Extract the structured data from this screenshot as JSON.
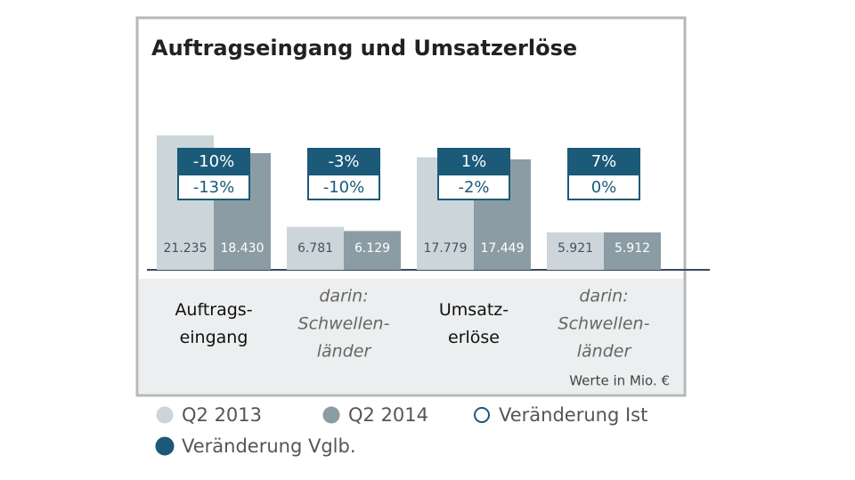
{
  "chart_data": {
    "type": "bar",
    "title": "Auftragseingang und Umsatzerlöse",
    "categories": [
      [
        "Auftrags-",
        "eingang"
      ],
      [
        "darin:",
        "Schwellen-",
        "länder"
      ],
      [
        "Umsatz-",
        "erlöse"
      ],
      [
        "darin:",
        "Schwellen-",
        "länder"
      ]
    ],
    "category_italic": [
      false,
      true,
      false,
      true
    ],
    "series": [
      {
        "name": "Q2 2013",
        "style": "bar",
        "color": "#cbd5da",
        "label_color": "#44525c",
        "values": [
          21235,
          6781,
          17779,
          5921
        ],
        "value_labels": [
          "21.235",
          "6.781",
          "17.779",
          "5.921"
        ]
      },
      {
        "name": "Q2 2014",
        "style": "bar",
        "color": "#8c9ca5",
        "label_color": "#ffffff",
        "values": [
          18430,
          6129,
          17449,
          5912
        ],
        "value_labels": [
          "18.430",
          "6.129",
          "17.449",
          "5.912"
        ]
      },
      {
        "name": "Veränderung Ist",
        "style": "box",
        "color": "#ffffff",
        "border": "#1b5a78",
        "label_color": "#1b5a78",
        "values": [
          -13,
          -10,
          -2,
          0
        ],
        "value_labels": [
          "-13%",
          "-10%",
          "-2%",
          "0%"
        ]
      },
      {
        "name": "Veränderung Vglb.",
        "style": "box",
        "color": "#1b5a78",
        "border": "#1b5a78",
        "label_color": "#ffffff",
        "values": [
          -10,
          -3,
          1,
          7
        ],
        "value_labels": [
          "-10%",
          "-3%",
          "1%",
          "7%"
        ]
      }
    ],
    "note": "Werte in Mio. €"
  }
}
